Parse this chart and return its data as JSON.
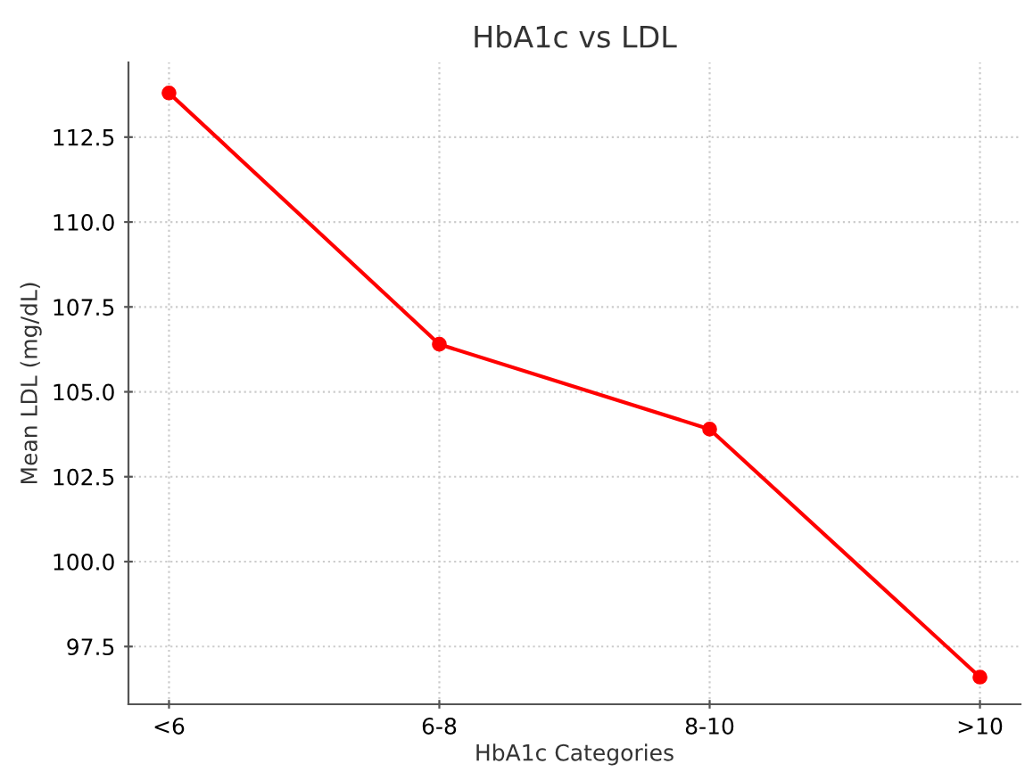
{
  "chart_data": {
    "type": "line",
    "title": "HbA1c vs LDL",
    "xlabel": "HbA1c Categories",
    "ylabel": "Mean LDL (mg/dL)",
    "categories": [
      "<6",
      "6-8",
      "8-10",
      ">10"
    ],
    "series": [
      {
        "color": "#ff0000",
        "values": [
          113.8,
          106.4,
          103.9,
          96.6
        ]
      }
    ],
    "ylim": [
      95.8,
      114.7
    ],
    "yticks": [
      {
        "value": 97.5,
        "label": "97.5"
      },
      {
        "value": 100,
        "label": "100.0"
      },
      {
        "value": 102.5,
        "label": "102.5"
      },
      {
        "value": 105,
        "label": "105.0"
      },
      {
        "value": 107.5,
        "label": "107.5"
      },
      {
        "value": 110,
        "label": "110.0"
      },
      {
        "value": 112.5,
        "label": "112.5"
      }
    ],
    "grid": true,
    "marker": "circle",
    "line_style": "solid"
  }
}
